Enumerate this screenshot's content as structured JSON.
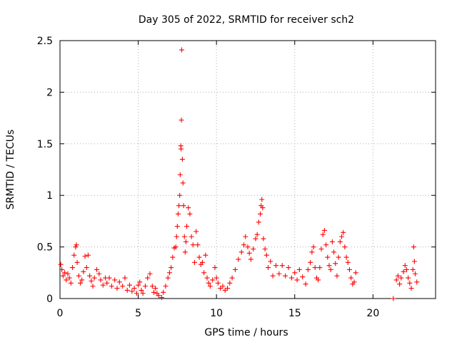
{
  "chart_data": {
    "type": "scatter",
    "title": "Day 305 of 2022, SRMTID for receiver sch2",
    "xlabel": "GPS time / hours",
    "ylabel": "SRMTID / TECUs",
    "xlim": [
      0,
      24
    ],
    "ylim": [
      0,
      2.5
    ],
    "xticks": [
      0,
      5,
      10,
      15,
      20
    ],
    "yticks": [
      0,
      0.5,
      1,
      1.5,
      2,
      2.5
    ],
    "ytick_labels": [
      "0",
      "0.5",
      "1",
      "1.5",
      "2",
      "2.5"
    ],
    "grid": true,
    "marker": "+",
    "series_color": "#ff0000",
    "series": [
      {
        "name": "SRMTID sch2",
        "points": [
          [
            0.05,
            0.33
          ],
          [
            0.12,
            0.28
          ],
          [
            0.2,
            0.22
          ],
          [
            0.3,
            0.25
          ],
          [
            0.4,
            0.18
          ],
          [
            0.5,
            0.24
          ],
          [
            0.6,
            0.2
          ],
          [
            0.7,
            0.15
          ],
          [
            0.8,
            0.3
          ],
          [
            0.9,
            0.42
          ],
          [
            1.0,
            0.5
          ],
          [
            1.05,
            0.52
          ],
          [
            1.1,
            0.35
          ],
          [
            1.2,
            0.22
          ],
          [
            1.3,
            0.15
          ],
          [
            1.4,
            0.18
          ],
          [
            1.5,
            0.26
          ],
          [
            1.6,
            0.41
          ],
          [
            1.7,
            0.3
          ],
          [
            1.8,
            0.42
          ],
          [
            1.9,
            0.22
          ],
          [
            2.0,
            0.17
          ],
          [
            2.1,
            0.12
          ],
          [
            2.2,
            0.2
          ],
          [
            2.35,
            0.28
          ],
          [
            2.5,
            0.24
          ],
          [
            2.6,
            0.18
          ],
          [
            2.75,
            0.13
          ],
          [
            2.9,
            0.2
          ],
          [
            3.0,
            0.15
          ],
          [
            3.15,
            0.2
          ],
          [
            3.3,
            0.12
          ],
          [
            3.5,
            0.18
          ],
          [
            3.65,
            0.1
          ],
          [
            3.8,
            0.16
          ],
          [
            4.0,
            0.12
          ],
          [
            4.15,
            0.2
          ],
          [
            4.3,
            0.08
          ],
          [
            4.45,
            0.13
          ],
          [
            4.6,
            0.07
          ],
          [
            4.75,
            0.1
          ],
          [
            4.9,
            0.05
          ],
          [
            5.0,
            0.13
          ],
          [
            5.1,
            0.16
          ],
          [
            5.2,
            0.08
          ],
          [
            5.3,
            0.05
          ],
          [
            5.45,
            0.12
          ],
          [
            5.6,
            0.2
          ],
          [
            5.75,
            0.24
          ],
          [
            5.9,
            0.12
          ],
          [
            6.0,
            0.06
          ],
          [
            6.1,
            0.1
          ],
          [
            6.2,
            0.05
          ],
          [
            6.3,
            0.03
          ],
          [
            6.5,
            0.01
          ],
          [
            6.6,
            0.06
          ],
          [
            6.75,
            0.12
          ],
          [
            6.9,
            0.2
          ],
          [
            7.0,
            0.25
          ],
          [
            7.1,
            0.3
          ],
          [
            7.2,
            0.4
          ],
          [
            7.3,
            0.49
          ],
          [
            7.4,
            0.5
          ],
          [
            7.45,
            0.6
          ],
          [
            7.5,
            0.7
          ],
          [
            7.55,
            0.82
          ],
          [
            7.6,
            0.9
          ],
          [
            7.65,
            1.0
          ],
          [
            7.68,
            1.2
          ],
          [
            7.72,
            1.48
          ],
          [
            7.74,
            1.45
          ],
          [
            7.76,
            1.73
          ],
          [
            7.78,
            2.41
          ],
          [
            7.82,
            1.35
          ],
          [
            7.86,
            1.12
          ],
          [
            7.9,
            0.9
          ],
          [
            7.95,
            0.6
          ],
          [
            8.0,
            0.45
          ],
          [
            8.05,
            0.55
          ],
          [
            8.1,
            0.7
          ],
          [
            8.2,
            0.88
          ],
          [
            8.3,
            0.82
          ],
          [
            8.4,
            0.6
          ],
          [
            8.5,
            0.52
          ],
          [
            8.6,
            0.35
          ],
          [
            8.7,
            0.65
          ],
          [
            8.8,
            0.52
          ],
          [
            8.9,
            0.4
          ],
          [
            9.0,
            0.33
          ],
          [
            9.1,
            0.35
          ],
          [
            9.2,
            0.25
          ],
          [
            9.3,
            0.42
          ],
          [
            9.4,
            0.2
          ],
          [
            9.5,
            0.15
          ],
          [
            9.6,
            0.12
          ],
          [
            9.75,
            0.18
          ],
          [
            9.9,
            0.3
          ],
          [
            10.0,
            0.2
          ],
          [
            10.1,
            0.15
          ],
          [
            10.25,
            0.1
          ],
          [
            10.4,
            0.12
          ],
          [
            10.55,
            0.08
          ],
          [
            10.7,
            0.1
          ],
          [
            10.85,
            0.15
          ],
          [
            11.0,
            0.2
          ],
          [
            11.2,
            0.28
          ],
          [
            11.4,
            0.38
          ],
          [
            11.6,
            0.45
          ],
          [
            11.75,
            0.52
          ],
          [
            11.85,
            0.6
          ],
          [
            12.0,
            0.5
          ],
          [
            12.1,
            0.44
          ],
          [
            12.2,
            0.38
          ],
          [
            12.35,
            0.48
          ],
          [
            12.5,
            0.58
          ],
          [
            12.6,
            0.62
          ],
          [
            12.7,
            0.74
          ],
          [
            12.8,
            0.82
          ],
          [
            12.85,
            0.9
          ],
          [
            12.9,
            0.96
          ],
          [
            12.95,
            0.88
          ],
          [
            13.0,
            0.58
          ],
          [
            13.1,
            0.48
          ],
          [
            13.2,
            0.42
          ],
          [
            13.3,
            0.3
          ],
          [
            13.45,
            0.36
          ],
          [
            13.6,
            0.22
          ],
          [
            13.8,
            0.32
          ],
          [
            14.0,
            0.24
          ],
          [
            14.2,
            0.32
          ],
          [
            14.4,
            0.22
          ],
          [
            14.6,
            0.3
          ],
          [
            14.8,
            0.2
          ],
          [
            15.0,
            0.25
          ],
          [
            15.15,
            0.18
          ],
          [
            15.3,
            0.28
          ],
          [
            15.5,
            0.21
          ],
          [
            15.7,
            0.14
          ],
          [
            15.85,
            0.28
          ],
          [
            16.0,
            0.35
          ],
          [
            16.1,
            0.45
          ],
          [
            16.2,
            0.5
          ],
          [
            16.3,
            0.3
          ],
          [
            16.4,
            0.2
          ],
          [
            16.5,
            0.18
          ],
          [
            16.6,
            0.3
          ],
          [
            16.7,
            0.48
          ],
          [
            16.8,
            0.62
          ],
          [
            16.9,
            0.66
          ],
          [
            17.0,
            0.52
          ],
          [
            17.1,
            0.4
          ],
          [
            17.2,
            0.32
          ],
          [
            17.3,
            0.28
          ],
          [
            17.4,
            0.55
          ],
          [
            17.5,
            0.45
          ],
          [
            17.6,
            0.34
          ],
          [
            17.7,
            0.22
          ],
          [
            17.8,
            0.4
          ],
          [
            17.9,
            0.55
          ],
          [
            18.0,
            0.6
          ],
          [
            18.1,
            0.64
          ],
          [
            18.2,
            0.5
          ],
          [
            18.3,
            0.4
          ],
          [
            18.4,
            0.35
          ],
          [
            18.5,
            0.28
          ],
          [
            18.6,
            0.2
          ],
          [
            18.7,
            0.14
          ],
          [
            18.8,
            0.16
          ],
          [
            18.9,
            0.25
          ],
          [
            21.3,
            0.0
          ],
          [
            21.5,
            0.18
          ],
          [
            21.6,
            0.22
          ],
          [
            21.7,
            0.14
          ],
          [
            21.8,
            0.2
          ],
          [
            21.95,
            0.26
          ],
          [
            22.05,
            0.32
          ],
          [
            22.15,
            0.28
          ],
          [
            22.25,
            0.2
          ],
          [
            22.35,
            0.15
          ],
          [
            22.45,
            0.1
          ],
          [
            22.55,
            0.28
          ],
          [
            22.6,
            0.5
          ],
          [
            22.65,
            0.36
          ],
          [
            22.7,
            0.24
          ],
          [
            22.8,
            0.16
          ]
        ]
      }
    ]
  }
}
